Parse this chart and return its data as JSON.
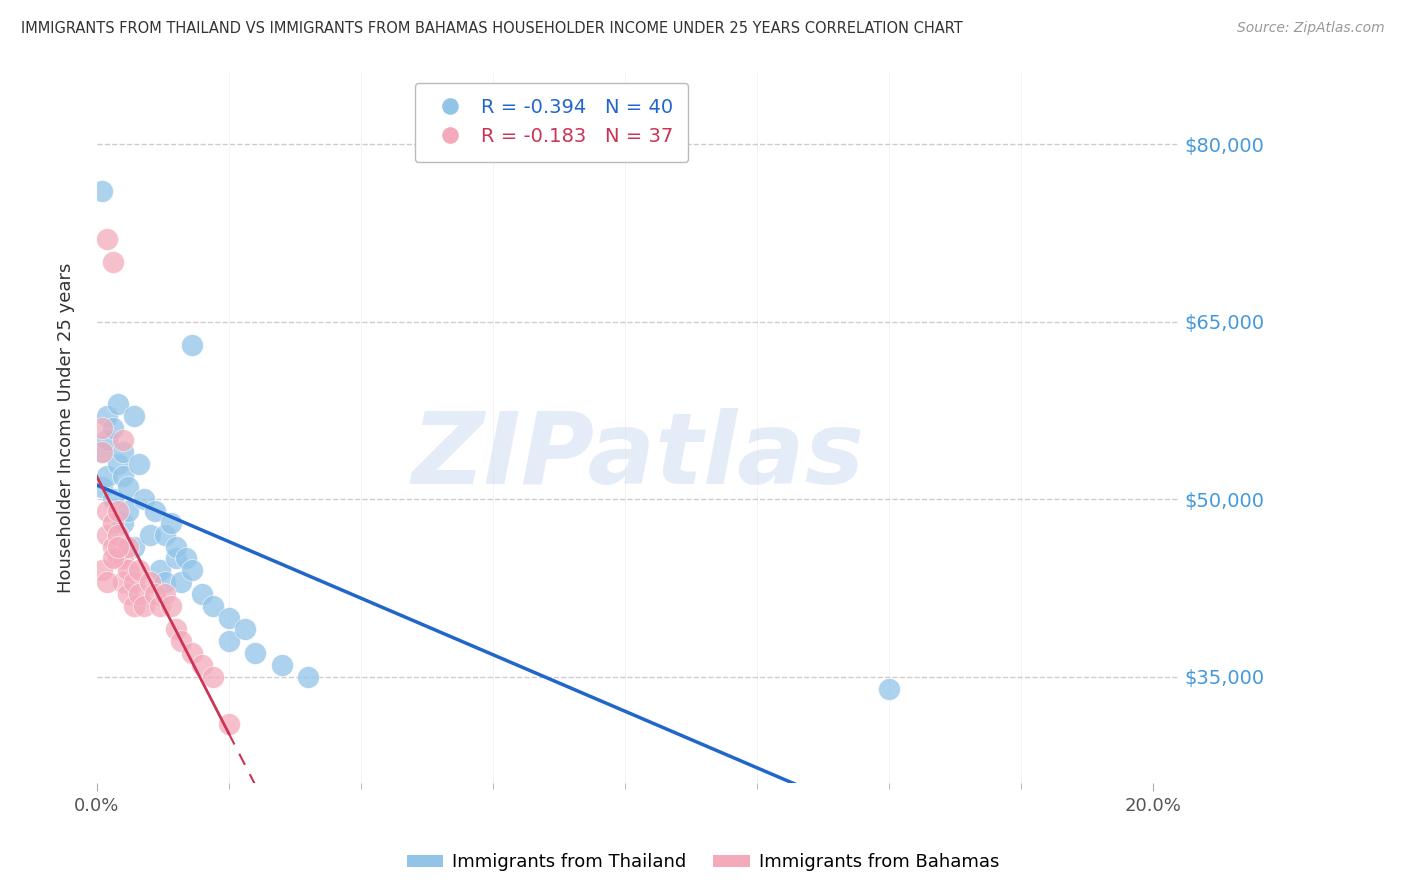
{
  "title": "IMMIGRANTS FROM THAILAND VS IMMIGRANTS FROM BAHAMAS HOUSEHOLDER INCOME UNDER 25 YEARS CORRELATION CHART",
  "source": "Source: ZipAtlas.com",
  "ylabel": "Householder Income Under 25 years",
  "watermark": "ZIPatlas",
  "xlim": [
    0.0,
    0.205
  ],
  "ylim": [
    26000,
    86000
  ],
  "yticks": [
    35000,
    50000,
    65000,
    80000
  ],
  "ytick_labels": [
    "$35,000",
    "$50,000",
    "$65,000",
    "$80,000"
  ],
  "xtick_positions": [
    0.0,
    0.2
  ],
  "xtick_labels": [
    "0.0%",
    "20.0%"
  ],
  "thailand_color": "#92C4E8",
  "bahamas_color": "#F4AABB",
  "thailand_R": -0.394,
  "thailand_N": 40,
  "bahamas_R": -0.183,
  "bahamas_N": 37,
  "thailand_line_color": "#2266CC",
  "bahamas_line_color": "#CC3355",
  "grid_color": "#CCCCCC",
  "background_color": "#FFFFFF",
  "title_color": "#333333",
  "right_label_color": "#4499DD",
  "thailand_x": [
    0.001,
    0.001,
    0.002,
    0.002,
    0.002,
    0.003,
    0.003,
    0.004,
    0.004,
    0.005,
    0.005,
    0.005,
    0.006,
    0.006,
    0.007,
    0.007,
    0.008,
    0.009,
    0.01,
    0.011,
    0.012,
    0.013,
    0.013,
    0.014,
    0.015,
    0.015,
    0.016,
    0.017,
    0.018,
    0.018,
    0.02,
    0.022,
    0.025,
    0.025,
    0.028,
    0.03,
    0.035,
    0.04,
    0.15,
    0.001
  ],
  "thailand_y": [
    51000,
    54000,
    55000,
    57000,
    52000,
    56000,
    50000,
    53000,
    58000,
    48000,
    52000,
    54000,
    49000,
    51000,
    46000,
    57000,
    53000,
    50000,
    47000,
    49000,
    44000,
    47000,
    43000,
    48000,
    45000,
    46000,
    43000,
    45000,
    44000,
    63000,
    42000,
    41000,
    40000,
    38000,
    39000,
    37000,
    36000,
    35000,
    34000,
    76000
  ],
  "bahamas_x": [
    0.001,
    0.001,
    0.002,
    0.002,
    0.002,
    0.003,
    0.003,
    0.003,
    0.004,
    0.004,
    0.004,
    0.005,
    0.005,
    0.005,
    0.006,
    0.006,
    0.006,
    0.007,
    0.007,
    0.008,
    0.008,
    0.009,
    0.01,
    0.011,
    0.012,
    0.013,
    0.014,
    0.015,
    0.016,
    0.018,
    0.02,
    0.022,
    0.025,
    0.001,
    0.002,
    0.003,
    0.004
  ],
  "bahamas_y": [
    54000,
    56000,
    47000,
    49000,
    72000,
    46000,
    48000,
    70000,
    45000,
    47000,
    49000,
    43000,
    45000,
    55000,
    42000,
    44000,
    46000,
    41000,
    43000,
    42000,
    44000,
    41000,
    43000,
    42000,
    41000,
    42000,
    41000,
    39000,
    38000,
    37000,
    36000,
    35000,
    31000,
    44000,
    43000,
    45000,
    46000
  ]
}
